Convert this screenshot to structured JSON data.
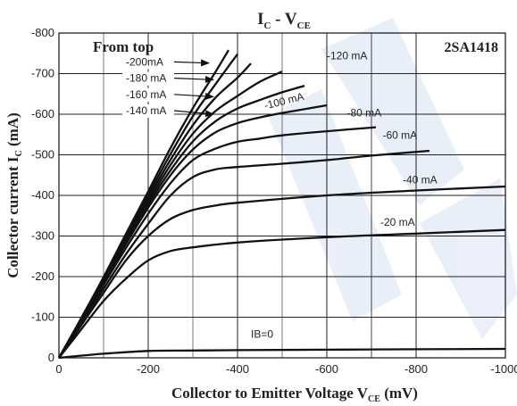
{
  "chart_data": {
    "type": "line",
    "part_label": "2SA1418",
    "legend_heading": "From top",
    "title": {
      "main": "I",
      "sub1": "C",
      "mid": " - V",
      "sub2": "CE"
    },
    "xlabel": {
      "pre": "Collector to Emitter Voltage V",
      "sub": "CE",
      "post": " (mV)"
    },
    "ylabel": {
      "pre": "Collector current I",
      "sub": "C",
      "post": " (mA)"
    },
    "x_ticks": [
      0,
      -200,
      -400,
      -600,
      -800,
      -1000
    ],
    "x_tick_labels": [
      "0",
      "-200",
      "-400",
      "-600",
      "-800",
      "-1000"
    ],
    "y_ticks": [
      0,
      -100,
      -200,
      -300,
      -400,
      -500,
      -600,
      -700,
      -800
    ],
    "y_tick_labels": [
      "0",
      "-100",
      "-200",
      "-300",
      "-400",
      "-500",
      "-600",
      "-700",
      "-800"
    ],
    "xlim": [
      0,
      -1000
    ],
    "ylim": [
      0,
      -800
    ],
    "grid": true,
    "series": [
      {
        "name": "IB=0",
        "x": [
          0,
          -100,
          -200,
          -300,
          -400,
          -600,
          -800,
          -1000
        ],
        "y": [
          0,
          -10,
          -17,
          -18,
          -19,
          -20,
          -21,
          -22
        ]
      },
      {
        "name": "-20 mA",
        "x": [
          0,
          -50,
          -100,
          -150,
          -200,
          -250,
          -300,
          -400,
          -600,
          -800,
          -1000
        ],
        "y": [
          0,
          -70,
          -140,
          -195,
          -240,
          -263,
          -272,
          -284,
          -297,
          -306,
          -315
        ]
      },
      {
        "name": "-40 mA",
        "x": [
          0,
          -50,
          -100,
          -150,
          -200,
          -250,
          -300,
          -350,
          -400,
          -600,
          -800,
          -1000
        ],
        "y": [
          0,
          -80,
          -160,
          -240,
          -300,
          -342,
          -364,
          -375,
          -382,
          -400,
          -412,
          -422
        ]
      },
      {
        "name": "-60 mA",
        "x": [
          0,
          -50,
          -100,
          -150,
          -200,
          -250,
          -300,
          -350,
          -400,
          -500,
          -600,
          -700,
          -830
        ],
        "y": [
          0,
          -85,
          -170,
          -255,
          -330,
          -400,
          -445,
          -464,
          -470,
          -478,
          -487,
          -498,
          -510
        ]
      },
      {
        "name": "-80 mA",
        "x": [
          0,
          -50,
          -100,
          -150,
          -200,
          -250,
          -300,
          -350,
          -400,
          -450,
          -500,
          -600,
          -710
        ],
        "y": [
          0,
          -88,
          -180,
          -270,
          -355,
          -430,
          -487,
          -515,
          -532,
          -540,
          -548,
          -558,
          -568
        ]
      },
      {
        "name": "-100 mA",
        "x": [
          0,
          -50,
          -100,
          -150,
          -200,
          -250,
          -300,
          -350,
          -400,
          -450,
          -500,
          -600
        ],
        "y": [
          0,
          -90,
          -185,
          -280,
          -370,
          -450,
          -513,
          -555,
          -578,
          -592,
          -603,
          -622
        ]
      },
      {
        "name": "-120 mA",
        "x": [
          0,
          -50,
          -100,
          -150,
          -200,
          -250,
          -300,
          -350,
          -400,
          -450,
          -500,
          -550
        ],
        "y": [
          0,
          -92,
          -188,
          -285,
          -378,
          -462,
          -533,
          -582,
          -614,
          -635,
          -654,
          -670
        ]
      },
      {
        "name": "-140 mA",
        "x": [
          0,
          -50,
          -100,
          -150,
          -200,
          -250,
          -300,
          -350,
          -400,
          -450,
          -500
        ],
        "y": [
          0,
          -93,
          -190,
          -290,
          -385,
          -475,
          -552,
          -607,
          -645,
          -680,
          -705
        ]
      },
      {
        "name": "-160 mA",
        "x": [
          0,
          -50,
          -100,
          -150,
          -200,
          -250,
          -300,
          -350,
          -400,
          -430
        ],
        "y": [
          0,
          -95,
          -193,
          -295,
          -393,
          -488,
          -573,
          -640,
          -690,
          -725
        ]
      },
      {
        "name": "-180 mA",
        "x": [
          0,
          -50,
          -100,
          -150,
          -200,
          -250,
          -300,
          -350,
          -400
        ],
        "y": [
          0,
          -97,
          -196,
          -300,
          -401,
          -502,
          -595,
          -673,
          -748
        ]
      },
      {
        "name": "-200 mA",
        "x": [
          0,
          -50,
          -100,
          -150,
          -200,
          -250,
          -300,
          -350,
          -380
        ],
        "y": [
          0,
          -98,
          -199,
          -305,
          -410,
          -517,
          -615,
          -703,
          -758
        ]
      }
    ],
    "curve_labels": [
      {
        "text": "IB=0",
        "at": [
          -430,
          -50
        ]
      },
      {
        "text": "-20 mA",
        "at": [
          -720,
          -325
        ]
      },
      {
        "text": "-40 mA",
        "at": [
          -770,
          -430
        ]
      },
      {
        "text": "-60 mA",
        "at": [
          -725,
          -540
        ]
      },
      {
        "text": "-80 mA",
        "at": [
          -645,
          -595
        ]
      },
      {
        "text": "-100 mA",
        "at": [
          -462,
          -612
        ]
      },
      {
        "text": "-120 mA",
        "at": [
          -600,
          -735
        ]
      }
    ],
    "legend_labels": [
      {
        "text": "-200mA",
        "at": [
          -150,
          -720
        ],
        "arrow_to": [
          -336,
          -726
        ]
      },
      {
        "text": "-180 mA",
        "at": [
          -150,
          -680
        ],
        "arrow_to": [
          -346,
          -685
        ]
      },
      {
        "text": "-160 mA",
        "at": [
          -150,
          -640
        ],
        "arrow_to": [
          -346,
          -643
        ]
      },
      {
        "text": "-140 mA",
        "at": [
          -150,
          -600
        ],
        "arrow_to": [
          -346,
          -600
        ]
      }
    ]
  }
}
